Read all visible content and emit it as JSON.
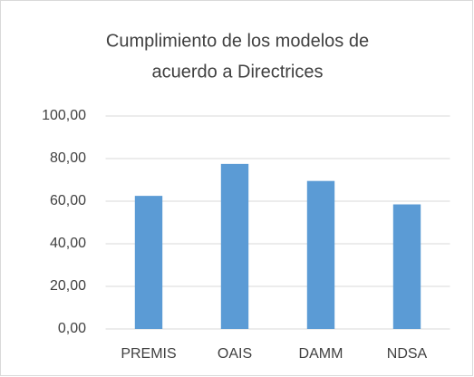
{
  "chart_data": {
    "type": "bar",
    "title": [
      "Cumplimiento de los modelos de",
      "acuerdo a Directrices"
    ],
    "categories": [
      "PREMIS",
      "OAIS",
      "DAMM",
      "NDSA"
    ],
    "values": [
      62.5,
      77.5,
      69.5,
      58.5
    ],
    "color": "#5b9bd5",
    "ylim": [
      0,
      100
    ],
    "yticks": [
      {
        "value": 0,
        "label": "0,00"
      },
      {
        "value": 20,
        "label": "20,00"
      },
      {
        "value": 40,
        "label": "40,00"
      },
      {
        "value": 60,
        "label": "60,00"
      },
      {
        "value": 80,
        "label": "80,00"
      },
      {
        "value": 100,
        "label": "100,00"
      }
    ],
    "grid": true
  }
}
